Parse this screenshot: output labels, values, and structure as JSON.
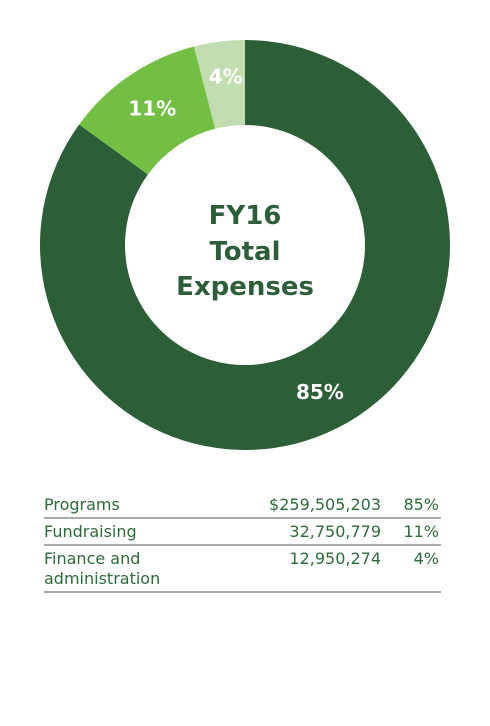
{
  "chart_data": {
    "type": "pie",
    "title_lines": [
      "FY16",
      "Total",
      "Expenses"
    ],
    "categories": [
      "Programs",
      "Fundraising",
      "Finance and administration"
    ],
    "values": [
      85,
      11,
      4
    ],
    "value_labels": [
      "85%",
      "11%",
      "4%"
    ],
    "colors": [
      "#2c5e38",
      "#72bf44",
      "#c2ddb0"
    ]
  },
  "table": {
    "rows": [
      {
        "name": "Programs",
        "amount": "$259,505,203",
        "pct": "85%"
      },
      {
        "name": "Fundraising",
        "amount": "32,750,779",
        "pct": "11%"
      },
      {
        "name": "Finance and\nadministration",
        "amount": "12,950,274",
        "pct": "4%"
      }
    ]
  }
}
